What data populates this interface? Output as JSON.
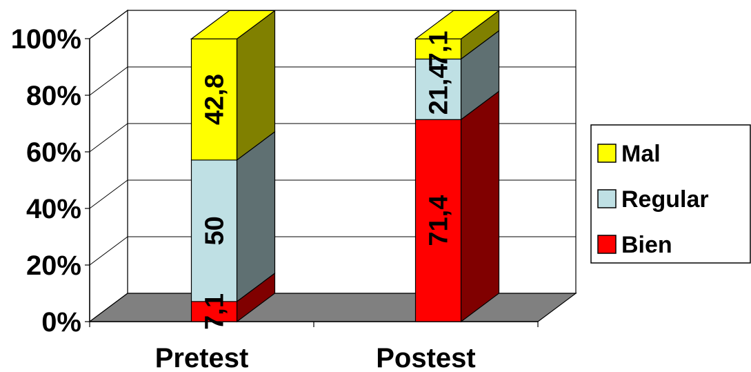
{
  "chart_data": {
    "type": "bar",
    "stacked": true,
    "three_d": true,
    "categories": [
      "Pretest",
      "Postest"
    ],
    "series": [
      {
        "name": "Bien",
        "values": [
          7.1,
          71.4
        ],
        "labels": [
          "7,1",
          "71,4"
        ],
        "color": "#ff0000",
        "side_color": "#800000"
      },
      {
        "name": "Regular",
        "values": [
          50,
          21.4
        ],
        "labels": [
          "50",
          "21,4"
        ],
        "color": "#bfe0e4",
        "side_color": "#5f7072"
      },
      {
        "name": "Mal",
        "values": [
          42.8,
          7.1
        ],
        "labels": [
          "42,8",
          "7,1"
        ],
        "color": "#ffff00",
        "side_color": "#808000"
      }
    ],
    "y_ticks": [
      "0%",
      "20%",
      "40%",
      "60%",
      "80%",
      "100%"
    ],
    "ylim": [
      0,
      100
    ],
    "grid": true,
    "floor_color": "#808080",
    "legend": {
      "placement": "right",
      "items": [
        "Mal",
        "Regular",
        "Bien"
      ]
    }
  }
}
